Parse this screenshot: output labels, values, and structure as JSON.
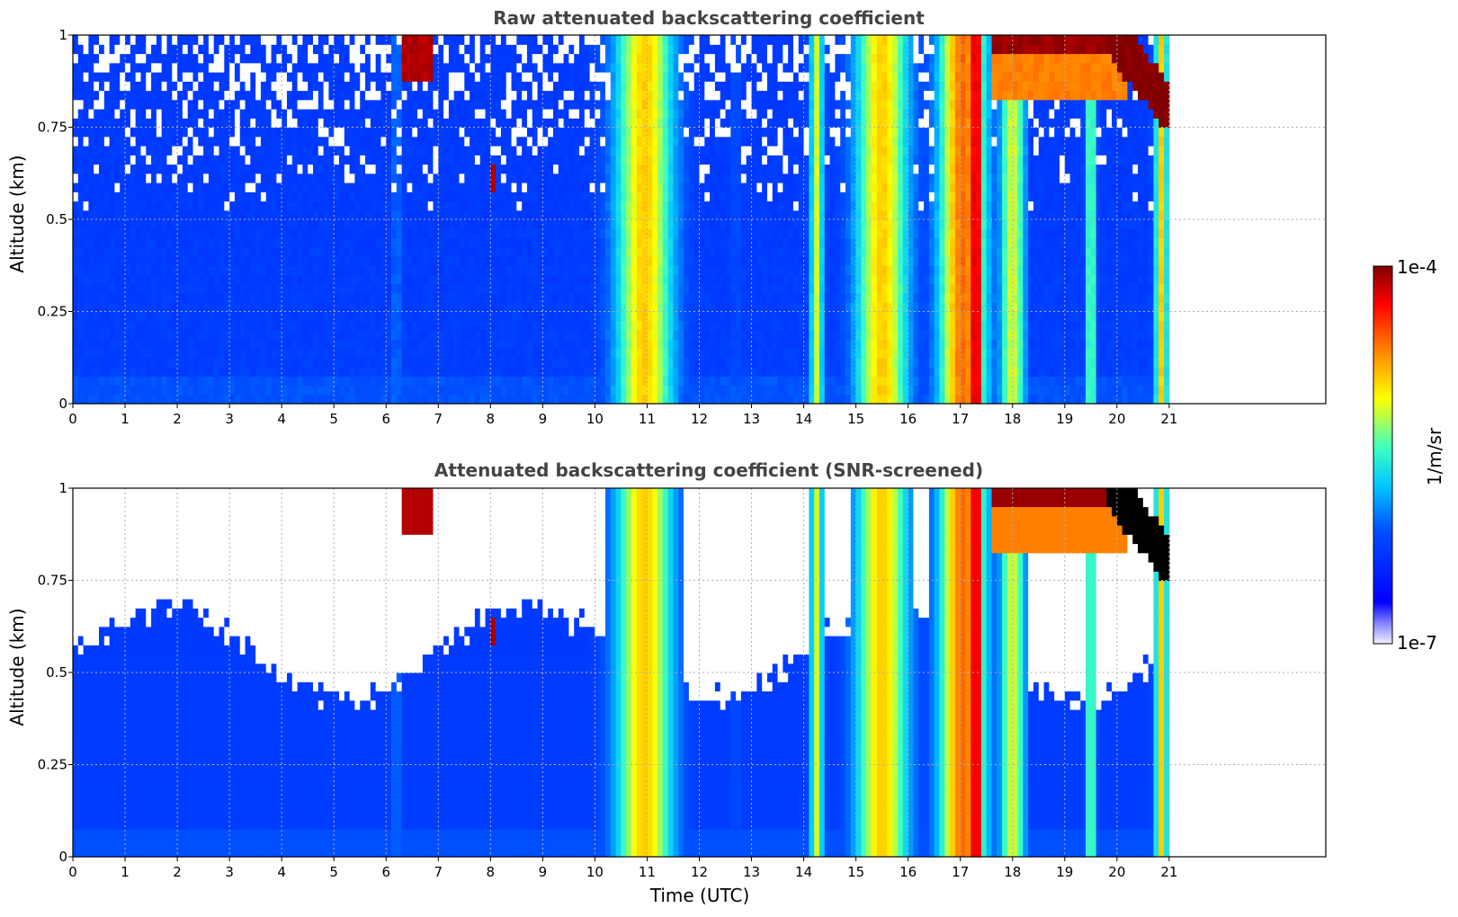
{
  "chart_data": [
    {
      "type": "heatmap",
      "title": "Raw attenuated backscattering coefficient",
      "xlabel": "",
      "ylabel": "Altitude (km)",
      "xlim": [
        0,
        24
      ],
      "ylim": [
        0,
        1
      ],
      "x_ticks": [
        "0",
        "1",
        "2",
        "3",
        "4",
        "5",
        "6",
        "7",
        "8",
        "9",
        "10",
        "11",
        "12",
        "13",
        "14",
        "15",
        "16",
        "17",
        "18",
        "19",
        "20",
        "21"
      ],
      "y_ticks": [
        "0",
        "0.25",
        "0.5",
        "0.75",
        "1"
      ],
      "grid": true,
      "data_coverage_hours": [
        0,
        21
      ],
      "screened": false,
      "features": [
        {
          "t0": 10.3,
          "t1": 11.6,
          "top": 1.0,
          "peak": "high"
        },
        {
          "t0": 14.1,
          "t1": 14.4,
          "top": 1.0,
          "peak": "medium"
        },
        {
          "t0": 15.0,
          "t1": 16.0,
          "top": 1.0,
          "peak": "high"
        },
        {
          "t0": 16.6,
          "t1": 17.5,
          "top": 1.0,
          "peak": "very high"
        },
        {
          "t0": 19.4,
          "t1": 19.6,
          "top": 1.0,
          "peak": "medium"
        },
        {
          "t0": 20.7,
          "t1": 21.0,
          "top": 0.85,
          "peak": "very high"
        }
      ]
    },
    {
      "type": "heatmap",
      "title": "Attenuated backscattering coefficient (SNR-screened)",
      "xlabel": "Time (UTC)",
      "ylabel": "Altitude (km)",
      "xlim": [
        0,
        24
      ],
      "ylim": [
        0,
        1
      ],
      "x_ticks": [
        "0",
        "1",
        "2",
        "3",
        "4",
        "5",
        "6",
        "7",
        "8",
        "9",
        "10",
        "11",
        "12",
        "13",
        "14",
        "15",
        "16",
        "17",
        "18",
        "19",
        "20",
        "21"
      ],
      "y_ticks": [
        "0",
        "0.25",
        "0.5",
        "0.75",
        "1"
      ],
      "grid": true,
      "data_coverage_hours": [
        0,
        21
      ],
      "screened": true
    }
  ],
  "colorbar": {
    "label": "1/m/sr",
    "min_label": "1e-7",
    "max_label": "1e-4",
    "min": 1e-07,
    "max": 0.0001,
    "scale": "log",
    "colormap": "jet"
  },
  "colors": {
    "axis": "#000000",
    "grid": "#b0b0b0",
    "title": "#444444",
    "saturated": "#000000",
    "background": "#ffffff"
  }
}
